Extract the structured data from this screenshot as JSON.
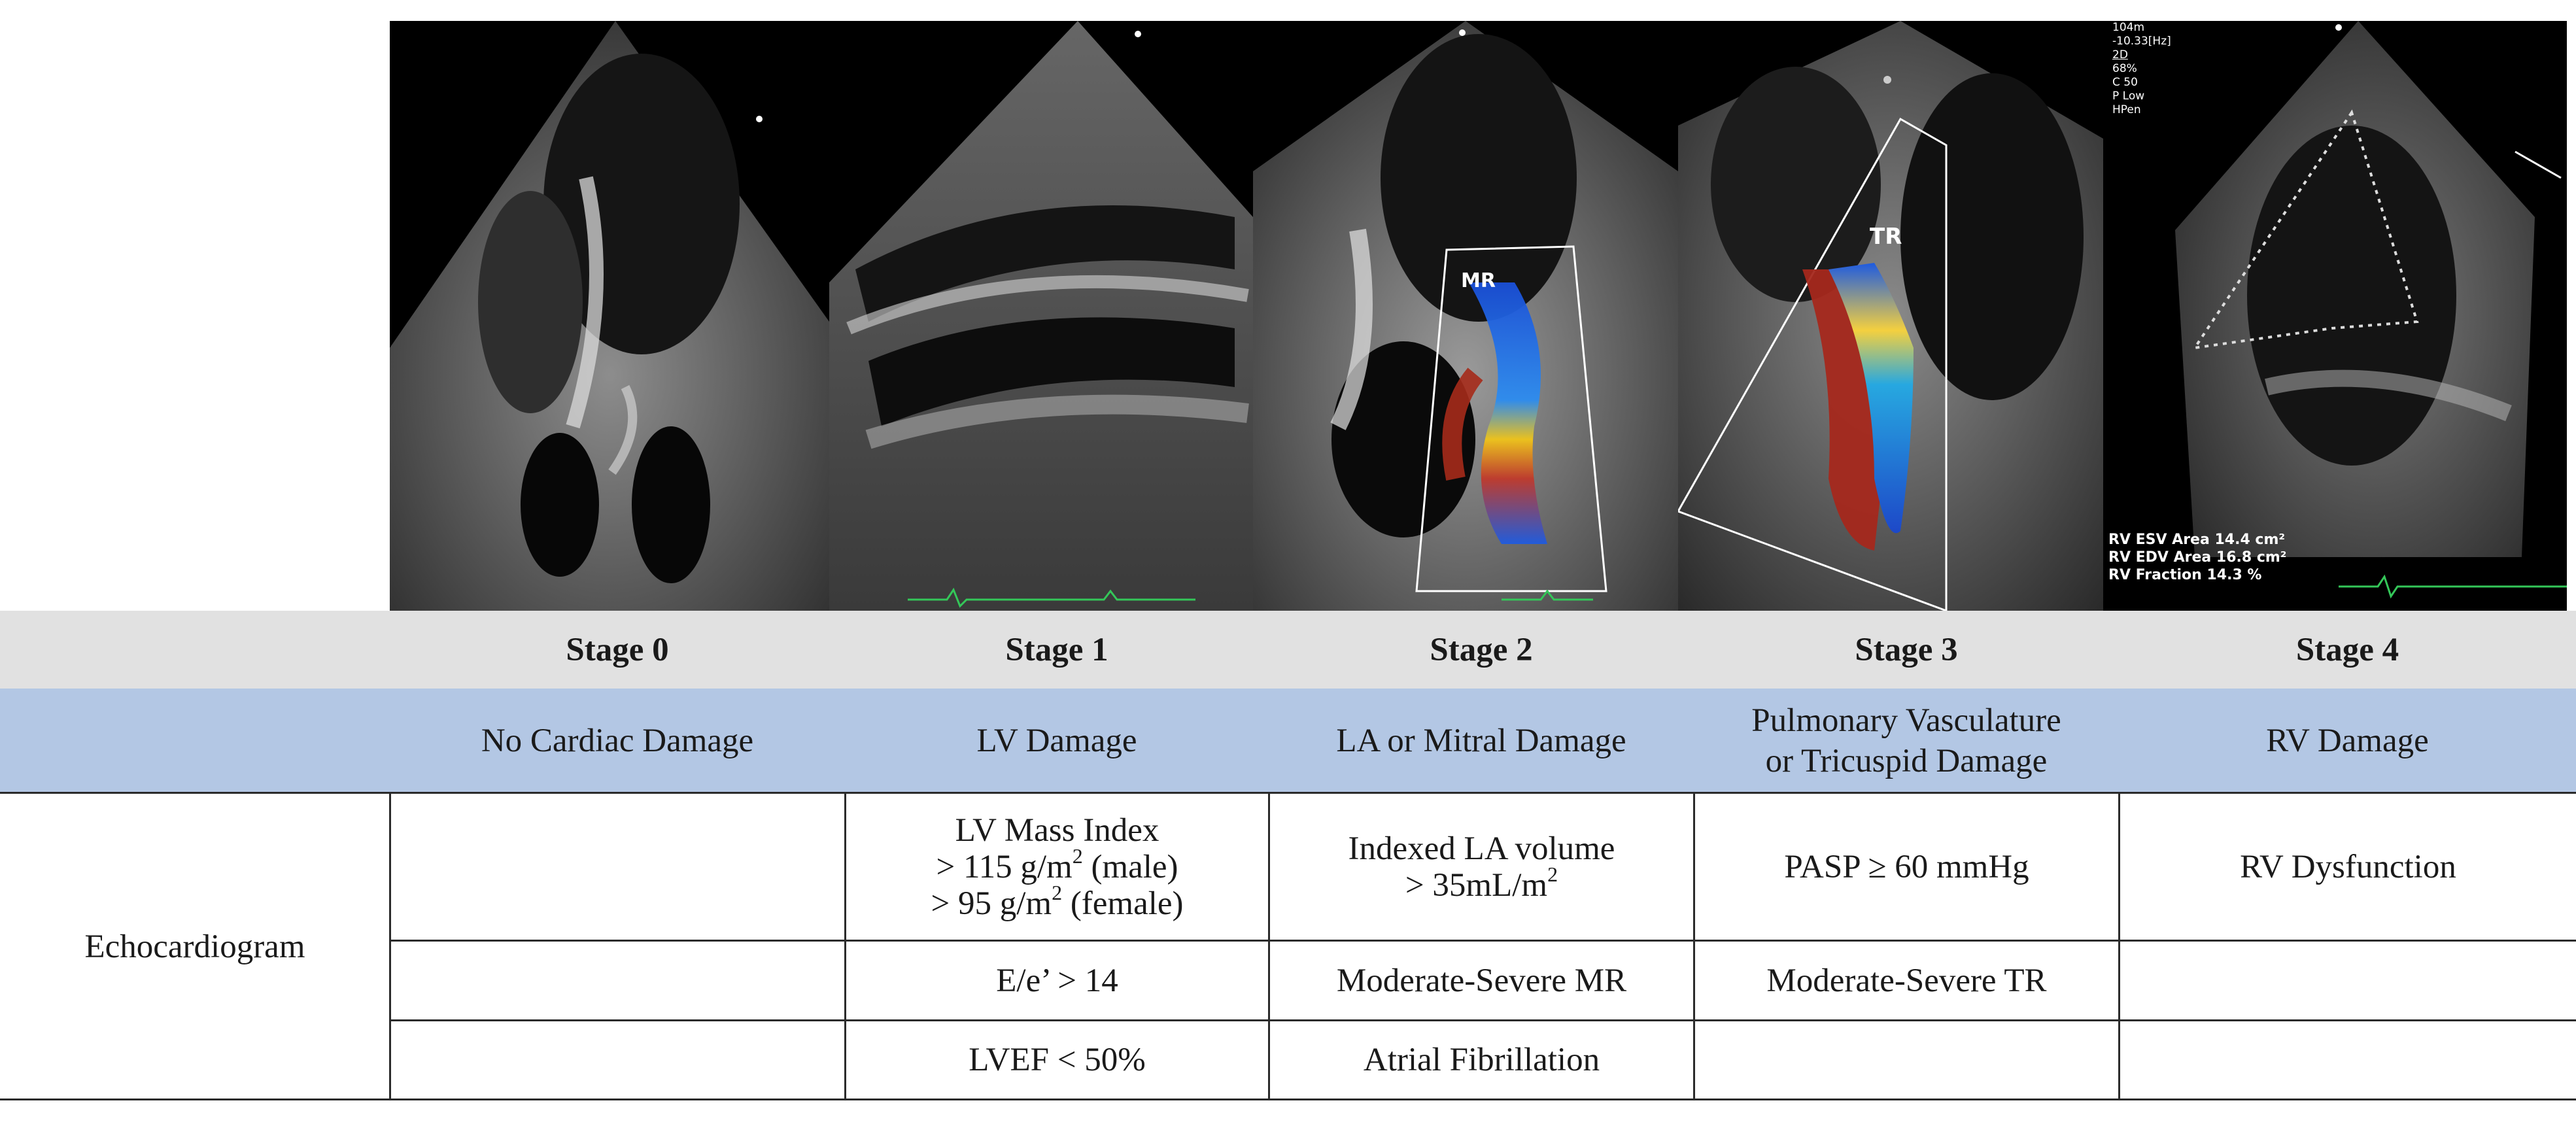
{
  "images": {
    "stage0": {
      "alt": ""
    },
    "stage1": {
      "alt": ""
    },
    "stage2": {
      "overlay": "MR"
    },
    "stage3": {
      "overlay": "TR"
    },
    "stage4": {
      "header_lines": [
        "104m",
        "-10.33[Hz]",
        "2D",
        "68%",
        "C 50",
        "P Low",
        "HPen"
      ],
      "measurements": [
        "RV ESV Area  14.4 cm²",
        "RV EDV Area  16.8 cm²",
        "RV Fraction  14.3 %"
      ]
    }
  },
  "table": {
    "stages": [
      "Stage 0",
      "Stage 1",
      "Stage 2",
      "Stage 3",
      "Stage 4"
    ],
    "descriptions": [
      "No Cardiac Damage",
      "LV Damage",
      "LA or Mitral Damage",
      "Pulmonary Vasculature",
      "or Tricuspid Damage",
      "RV Damage"
    ],
    "row_label": "Echocardiogram",
    "row1": {
      "stage1_line1": "LV Mass Index",
      "stage1_line2": "> 115 g/m",
      "stage1_line2_suffix": " (male)",
      "stage1_line3": "> 95 g/m",
      "stage1_line3_suffix": " (female)",
      "stage2_line1": "Indexed LA volume",
      "stage2_line2": "> 35mL/m",
      "stage3": "PASP ≥ 60 mmHg",
      "stage4": "RV Dysfunction"
    },
    "row2": {
      "stage1": "E/e’ > 14",
      "stage2": "Moderate-Severe MR",
      "stage3": "Moderate-Severe TR"
    },
    "row3": {
      "stage1": "LVEF < 50%",
      "stage2": "Atrial Fibrillation"
    },
    "superscript": "2"
  },
  "colors": {
    "header_gray": "#e1e1e1",
    "header_blue": "#b3c7e4",
    "rule": "#2b2b2b"
  }
}
